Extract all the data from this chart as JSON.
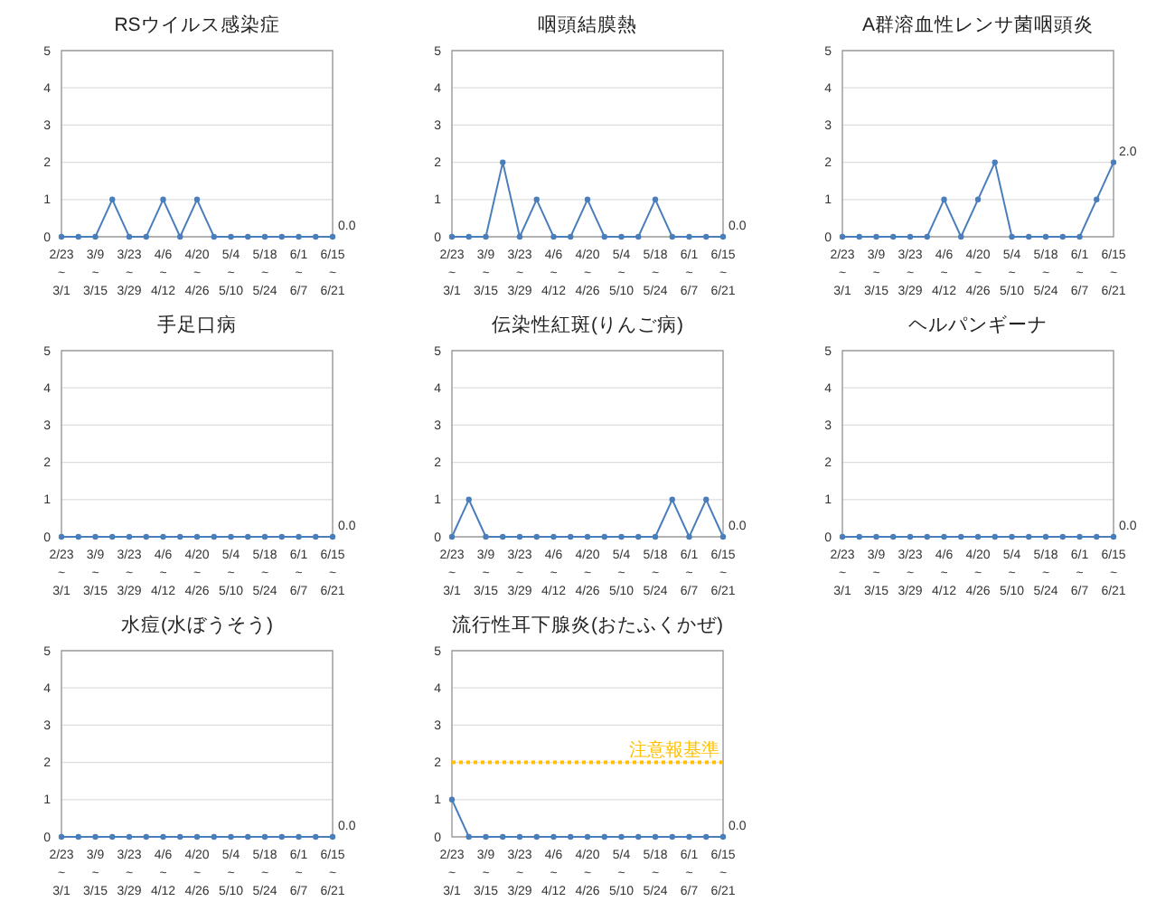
{
  "chart_data": [
    {
      "type": "line",
      "title": "RSウイルス感染症",
      "categories": [
        "2/23\n~\n3/1",
        null,
        "3/9\n~\n3/15",
        null,
        "3/23\n~\n3/29",
        null,
        "4/6\n~\n4/12",
        null,
        "4/20\n~\n4/26",
        null,
        "5/4\n~\n5/10",
        null,
        "5/18\n~\n5/24",
        null,
        "6/1\n~\n6/7",
        null,
        "6/15\n~\n6/21"
      ],
      "ylim": [
        0,
        5
      ],
      "yticks": [
        0,
        1,
        2,
        3,
        4,
        5
      ],
      "grid": "y",
      "marker": "circle",
      "series": [
        {
          "color": "#4a7ebb",
          "values": [
            0,
            0,
            0,
            1,
            0,
            0,
            1,
            0,
            1,
            0,
            0,
            0,
            0,
            0,
            0,
            0,
            0
          ],
          "value_labels": [
            null,
            null,
            null,
            null,
            null,
            null,
            null,
            null,
            null,
            null,
            null,
            null,
            null,
            null,
            null,
            null,
            "0.0"
          ]
        }
      ]
    },
    {
      "type": "line",
      "title": "咽頭結膜熱",
      "categories": [
        "2/23\n~\n3/1",
        null,
        "3/9\n~\n3/15",
        null,
        "3/23\n~\n3/29",
        null,
        "4/6\n~\n4/12",
        null,
        "4/20\n~\n4/26",
        null,
        "5/4\n~\n5/10",
        null,
        "5/18\n~\n5/24",
        null,
        "6/1\n~\n6/7",
        null,
        "6/15\n~\n6/21"
      ],
      "ylim": [
        0,
        5
      ],
      "yticks": [
        0,
        1,
        2,
        3,
        4,
        5
      ],
      "grid": "y",
      "marker": "circle",
      "series": [
        {
          "color": "#4a7ebb",
          "values": [
            0,
            0,
            0,
            2,
            0,
            1,
            0,
            0,
            1,
            0,
            0,
            0,
            1,
            0,
            0,
            0,
            0
          ],
          "value_labels": [
            null,
            null,
            null,
            null,
            null,
            null,
            null,
            null,
            null,
            null,
            null,
            null,
            null,
            null,
            null,
            null,
            "0.0"
          ]
        }
      ]
    },
    {
      "type": "line",
      "title": "A群溶血性レンサ菌咽頭炎",
      "categories": [
        "2/23\n~\n3/1",
        null,
        "3/9\n~\n3/15",
        null,
        "3/23\n~\n3/29",
        null,
        "4/6\n~\n4/12",
        null,
        "4/20\n~\n4/26",
        null,
        "5/4\n~\n5/10",
        null,
        "5/18\n~\n5/24",
        null,
        "6/1\n~\n6/7",
        null,
        "6/15\n~\n6/21"
      ],
      "ylim": [
        0,
        5
      ],
      "yticks": [
        0,
        1,
        2,
        3,
        4,
        5
      ],
      "grid": "y",
      "marker": "circle",
      "series": [
        {
          "color": "#4a7ebb",
          "values": [
            0,
            0,
            0,
            0,
            0,
            0,
            1,
            0,
            1,
            2,
            0,
            0,
            0,
            0,
            0,
            1,
            2
          ],
          "value_labels": [
            null,
            null,
            null,
            null,
            null,
            null,
            null,
            null,
            null,
            null,
            null,
            null,
            null,
            null,
            null,
            null,
            "2.0"
          ]
        }
      ]
    },
    {
      "type": "line",
      "title": "手足口病",
      "categories": [
        "2/23\n~\n3/1",
        null,
        "3/9\n~\n3/15",
        null,
        "3/23\n~\n3/29",
        null,
        "4/6\n~\n4/12",
        null,
        "4/20\n~\n4/26",
        null,
        "5/4\n~\n5/10",
        null,
        "5/18\n~\n5/24",
        null,
        "6/1\n~\n6/7",
        null,
        "6/15\n~\n6/21"
      ],
      "ylim": [
        0,
        5
      ],
      "yticks": [
        0,
        1,
        2,
        3,
        4,
        5
      ],
      "grid": "y",
      "marker": "circle",
      "series": [
        {
          "color": "#4a7ebb",
          "values": [
            0,
            0,
            0,
            0,
            0,
            0,
            0,
            0,
            0,
            0,
            0,
            0,
            0,
            0,
            0,
            0,
            0
          ],
          "value_labels": [
            null,
            null,
            null,
            null,
            null,
            null,
            null,
            null,
            null,
            null,
            null,
            null,
            null,
            null,
            null,
            null,
            "0.0"
          ]
        }
      ]
    },
    {
      "type": "line",
      "title": "伝染性紅斑(りんご病)",
      "categories": [
        "2/23\n~\n3/1",
        null,
        "3/9\n~\n3/15",
        null,
        "3/23\n~\n3/29",
        null,
        "4/6\n~\n4/12",
        null,
        "4/20\n~\n4/26",
        null,
        "5/4\n~\n5/10",
        null,
        "5/18\n~\n5/24",
        null,
        "6/1\n~\n6/7",
        null,
        "6/15\n~\n6/21"
      ],
      "ylim": [
        0,
        5
      ],
      "yticks": [
        0,
        1,
        2,
        3,
        4,
        5
      ],
      "grid": "y",
      "marker": "circle",
      "series": [
        {
          "color": "#4a7ebb",
          "values": [
            0,
            1,
            0,
            0,
            0,
            0,
            0,
            0,
            0,
            0,
            0,
            0,
            0,
            1,
            0,
            1,
            0
          ],
          "value_labels": [
            null,
            null,
            null,
            null,
            null,
            null,
            null,
            null,
            null,
            null,
            null,
            null,
            null,
            null,
            null,
            null,
            "0.0"
          ]
        }
      ]
    },
    {
      "type": "line",
      "title": "ヘルパンギーナ",
      "categories": [
        "2/23\n~\n3/1",
        null,
        "3/9\n~\n3/15",
        null,
        "3/23\n~\n3/29",
        null,
        "4/6\n~\n4/12",
        null,
        "4/20\n~\n4/26",
        null,
        "5/4\n~\n5/10",
        null,
        "5/18\n~\n5/24",
        null,
        "6/1\n~\n6/7",
        null,
        "6/15\n~\n6/21"
      ],
      "ylim": [
        0,
        5
      ],
      "yticks": [
        0,
        1,
        2,
        3,
        4,
        5
      ],
      "grid": "y",
      "marker": "circle",
      "series": [
        {
          "color": "#4a7ebb",
          "values": [
            0,
            0,
            0,
            0,
            0,
            0,
            0,
            0,
            0,
            0,
            0,
            0,
            0,
            0,
            0,
            0,
            0
          ],
          "value_labels": [
            null,
            null,
            null,
            null,
            null,
            null,
            null,
            null,
            null,
            null,
            null,
            null,
            null,
            null,
            null,
            null,
            "0.0"
          ]
        }
      ]
    },
    {
      "type": "line",
      "title": "水痘(水ぼうそう)",
      "categories": [
        "2/23\n~\n3/1",
        null,
        "3/9\n~\n3/15",
        null,
        "3/23\n~\n3/29",
        null,
        "4/6\n~\n4/12",
        null,
        "4/20\n~\n4/26",
        null,
        "5/4\n~\n5/10",
        null,
        "5/18\n~\n5/24",
        null,
        "6/1\n~\n6/7",
        null,
        "6/15\n~\n6/21"
      ],
      "ylim": [
        0,
        5
      ],
      "yticks": [
        0,
        1,
        2,
        3,
        4,
        5
      ],
      "grid": "y",
      "marker": "circle",
      "series": [
        {
          "color": "#4a7ebb",
          "values": [
            0,
            0,
            0,
            0,
            0,
            0,
            0,
            0,
            0,
            0,
            0,
            0,
            0,
            0,
            0,
            0,
            0
          ],
          "value_labels": [
            null,
            null,
            null,
            null,
            null,
            null,
            null,
            null,
            null,
            null,
            null,
            null,
            null,
            null,
            null,
            null,
            "0.0"
          ]
        }
      ]
    },
    {
      "type": "line",
      "title": "流行性耳下腺炎(おたふくかぜ)",
      "categories": [
        "2/23\n~\n3/1",
        null,
        "3/9\n~\n3/15",
        null,
        "3/23\n~\n3/29",
        null,
        "4/6\n~\n4/12",
        null,
        "4/20\n~\n4/26",
        null,
        "5/4\n~\n5/10",
        null,
        "5/18\n~\n5/24",
        null,
        "6/1\n~\n6/7",
        null,
        "6/15\n~\n6/21"
      ],
      "ylim": [
        0,
        5
      ],
      "yticks": [
        0,
        1,
        2,
        3,
        4,
        5
      ],
      "grid": "y",
      "marker": "circle",
      "ref_lines": [
        {
          "axis": "y",
          "value": 2,
          "label": "注意報基準",
          "color": "#ffc000",
          "line_style": "dotted"
        }
      ],
      "series": [
        {
          "color": "#4a7ebb",
          "values": [
            1,
            0,
            0,
            0,
            0,
            0,
            0,
            0,
            0,
            0,
            0,
            0,
            0,
            0,
            0,
            0,
            0
          ],
          "value_labels": [
            null,
            null,
            null,
            null,
            null,
            null,
            null,
            null,
            null,
            null,
            null,
            null,
            null,
            null,
            null,
            null,
            "0.0"
          ]
        }
      ]
    }
  ]
}
